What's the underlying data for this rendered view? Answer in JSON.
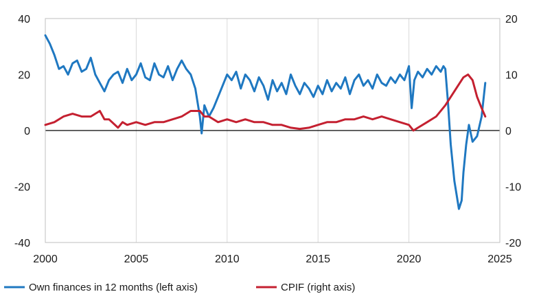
{
  "chart_data": {
    "type": "line",
    "x_range": [
      2000,
      2025
    ],
    "x_ticks": [
      2000,
      2005,
      2010,
      2015,
      2020,
      2025
    ],
    "left_axis": {
      "range": [
        -40,
        40
      ],
      "ticks": [
        -40,
        -20,
        0,
        20,
        40
      ]
    },
    "right_axis": {
      "range": [
        -20,
        20
      ],
      "ticks": [
        -20,
        -10,
        0,
        10,
        20
      ]
    },
    "grid": "vertical",
    "zero_line": true,
    "legend": {
      "position": "bottom"
    },
    "series": [
      {
        "name": "Own finances in 12 months (left axis)",
        "axis": "left",
        "color": "#1f78c1",
        "x": [
          2000.0,
          2000.25,
          2000.5,
          2000.75,
          2001.0,
          2001.25,
          2001.5,
          2001.75,
          2002.0,
          2002.25,
          2002.5,
          2002.75,
          2003.0,
          2003.25,
          2003.5,
          2003.75,
          2004.0,
          2004.25,
          2004.5,
          2004.75,
          2005.0,
          2005.25,
          2005.5,
          2005.75,
          2006.0,
          2006.25,
          2006.5,
          2006.75,
          2007.0,
          2007.25,
          2007.5,
          2007.75,
          2008.0,
          2008.25,
          2008.5,
          2008.6,
          2008.75,
          2009.0,
          2009.25,
          2009.5,
          2009.75,
          2010.0,
          2010.25,
          2010.5,
          2010.75,
          2011.0,
          2011.25,
          2011.5,
          2011.75,
          2012.0,
          2012.25,
          2012.5,
          2012.75,
          2013.0,
          2013.25,
          2013.5,
          2013.75,
          2014.0,
          2014.25,
          2014.5,
          2014.75,
          2015.0,
          2015.25,
          2015.5,
          2015.75,
          2016.0,
          2016.25,
          2016.5,
          2016.75,
          2017.0,
          2017.25,
          2017.5,
          2017.75,
          2018.0,
          2018.25,
          2018.5,
          2018.75,
          2019.0,
          2019.25,
          2019.5,
          2019.75,
          2020.0,
          2020.15,
          2020.3,
          2020.5,
          2020.75,
          2021.0,
          2021.25,
          2021.5,
          2021.75,
          2021.9,
          2022.0,
          2022.15,
          2022.3,
          2022.5,
          2022.75,
          2022.9,
          2023.0,
          2023.15,
          2023.3,
          2023.5,
          2023.75,
          2024.0,
          2024.2
        ],
        "values": [
          34,
          31,
          27,
          22,
          23,
          20,
          24,
          25,
          21,
          22,
          26,
          20,
          17,
          14,
          18,
          20,
          21,
          17,
          22,
          18,
          20,
          24,
          19,
          18,
          24,
          20,
          19,
          23,
          18,
          22,
          25,
          22,
          20,
          15,
          5,
          -1,
          9,
          5,
          8,
          12,
          16,
          20,
          18,
          21,
          15,
          20,
          18,
          14,
          19,
          16,
          11,
          18,
          14,
          17,
          13,
          20,
          16,
          13,
          17,
          15,
          12,
          16,
          13,
          18,
          14,
          17,
          15,
          19,
          13,
          18,
          20,
          16,
          18,
          15,
          20,
          17,
          16,
          19,
          17,
          20,
          18,
          23,
          8,
          18,
          21,
          19,
          22,
          20,
          23,
          21,
          23,
          22,
          10,
          -5,
          -18,
          -28,
          -25,
          -15,
          -5,
          2,
          -4,
          -2,
          5,
          17
        ]
      },
      {
        "name": "CPIF (right axis)",
        "axis": "right",
        "color": "#c42030",
        "x": [
          2000.0,
          2000.5,
          2001.0,
          2001.5,
          2002.0,
          2002.5,
          2003.0,
          2003.25,
          2003.5,
          2004.0,
          2004.25,
          2004.5,
          2005.0,
          2005.5,
          2006.0,
          2006.5,
          2007.0,
          2007.5,
          2008.0,
          2008.5,
          2008.75,
          2009.0,
          2009.5,
          2010.0,
          2010.5,
          2011.0,
          2011.5,
          2012.0,
          2012.5,
          2013.0,
          2013.5,
          2014.0,
          2014.5,
          2015.0,
          2015.5,
          2016.0,
          2016.5,
          2017.0,
          2017.5,
          2018.0,
          2018.5,
          2019.0,
          2019.5,
          2020.0,
          2020.25,
          2020.5,
          2021.0,
          2021.5,
          2022.0,
          2022.5,
          2023.0,
          2023.25,
          2023.5,
          2023.75,
          2024.0,
          2024.2
        ],
        "values": [
          1.0,
          1.5,
          2.5,
          3.0,
          2.5,
          2.5,
          3.5,
          2.0,
          2.0,
          0.5,
          1.5,
          1.0,
          1.5,
          1.0,
          1.5,
          1.5,
          2.0,
          2.5,
          3.5,
          3.5,
          2.5,
          2.5,
          1.5,
          2.0,
          1.5,
          2.0,
          1.5,
          1.5,
          1.0,
          1.0,
          0.5,
          0.3,
          0.5,
          1.0,
          1.5,
          1.5,
          2.0,
          2.0,
          2.5,
          2.0,
          2.5,
          2.0,
          1.5,
          1.0,
          0.0,
          0.5,
          1.5,
          2.5,
          4.5,
          7.0,
          9.5,
          10.0,
          9.0,
          6.0,
          4.0,
          2.5
        ]
      }
    ]
  }
}
